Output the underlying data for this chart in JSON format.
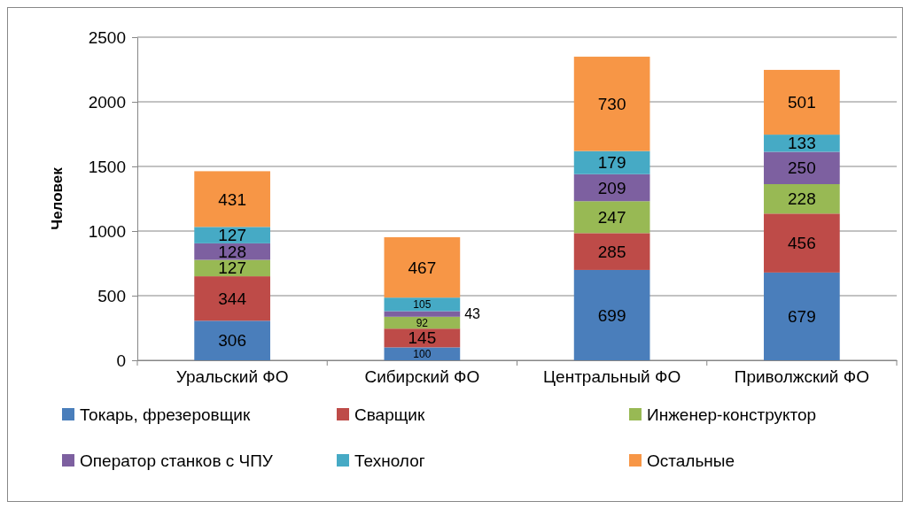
{
  "chart_data": {
    "type": "bar",
    "stacked": true,
    "ylabel": "Человек",
    "categories": [
      "Уральский ФО",
      "Сибирский ФО",
      "Центральный ФО",
      "Приволжский ФО"
    ],
    "series": [
      {
        "name": "Токарь, фрезеровщик",
        "color": "#4a7ebb",
        "values": [
          306,
          100,
          699,
          679
        ]
      },
      {
        "name": "Сварщик",
        "color": "#be4b48",
        "values": [
          344,
          145,
          285,
          456
        ]
      },
      {
        "name": "Инженер-конструктор",
        "color": "#98b954",
        "values": [
          127,
          92,
          247,
          228
        ]
      },
      {
        "name": "Оператор станков с ЧПУ",
        "color": "#7d60a0",
        "values": [
          128,
          43,
          209,
          250
        ]
      },
      {
        "name": "Технолог",
        "color": "#46aac5",
        "values": [
          127,
          105,
          179,
          133
        ]
      },
      {
        "name": "Остальные",
        "color": "#f79646",
        "values": [
          431,
          467,
          730,
          501
        ]
      }
    ],
    "ylim": [
      0,
      2500
    ],
    "yticks": [
      0,
      500,
      1000,
      1500,
      2000,
      2500
    ],
    "grid": "y",
    "legend": "bottom",
    "data_labels": true
  }
}
